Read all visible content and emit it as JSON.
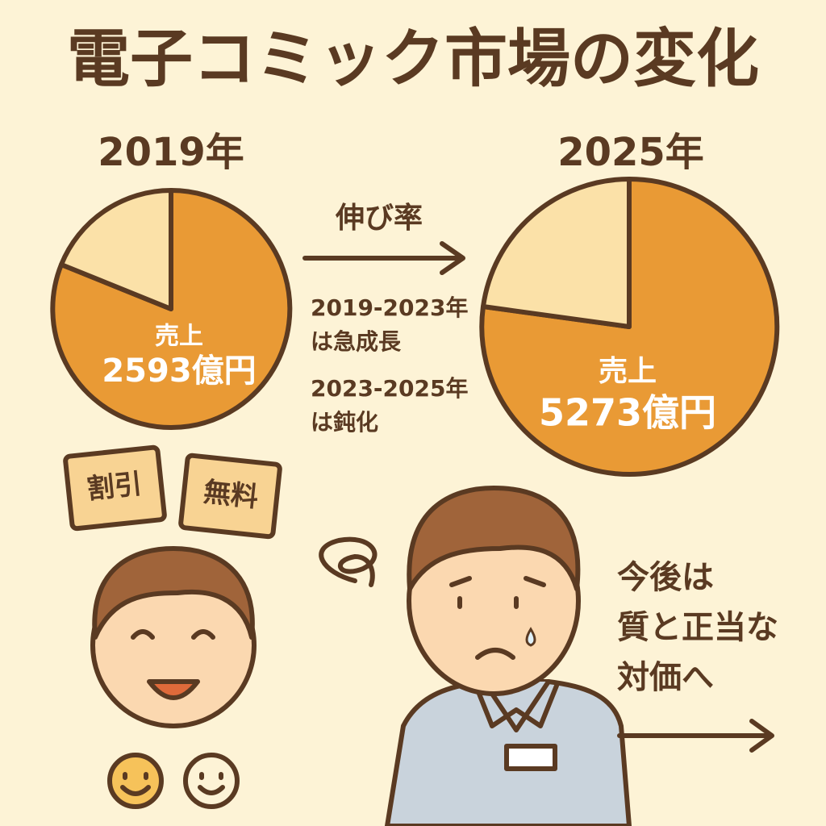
{
  "header": {
    "title": "電子コミック市場の変化"
  },
  "left_panel": {
    "year": "2019年",
    "sales_label": "売上",
    "sales_value": "2593億円"
  },
  "right_panel": {
    "year": "2025年",
    "sales_label": "売上",
    "sales_value": "5273億円"
  },
  "growth": {
    "label": "伸び率",
    "notes": [
      [
        "2019-2023年",
        "は急成長"
      ],
      [
        "2023-2025年",
        "は鈍化"
      ]
    ]
  },
  "tags": [
    "割引",
    "無料"
  ],
  "outlook": {
    "lines": [
      "今後は",
      "質と正当な",
      "対価へ"
    ]
  }
}
